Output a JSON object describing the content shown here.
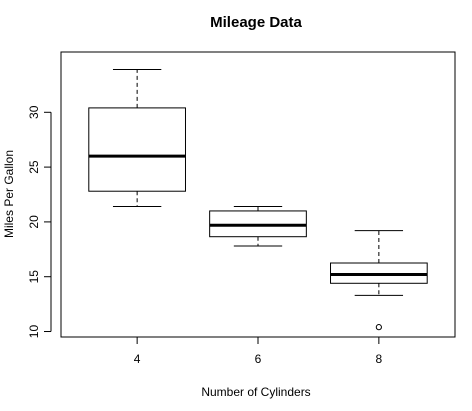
{
  "chart_data": {
    "type": "box",
    "title": "Mileage Data",
    "xlabel": "Number of Cylinders",
    "ylabel": "Miles Per Gallon",
    "categories": [
      "4",
      "6",
      "8"
    ],
    "ylim": [
      9.5,
      35.5
    ],
    "yticks": [
      10,
      15,
      20,
      25,
      30
    ],
    "grid": false,
    "boxes": [
      {
        "category": "4",
        "whisker_low": 21.4,
        "q1": 22.8,
        "median": 26.0,
        "q3": 30.4,
        "whisker_high": 33.9,
        "outliers": []
      },
      {
        "category": "6",
        "whisker_low": 17.8,
        "q1": 18.65,
        "median": 19.7,
        "q3": 21.0,
        "whisker_high": 21.4,
        "outliers": []
      },
      {
        "category": "8",
        "whisker_low": 13.3,
        "q1": 14.4,
        "median": 15.2,
        "q3": 16.25,
        "whisker_high": 19.2,
        "outliers": [
          10.4
        ]
      }
    ]
  }
}
